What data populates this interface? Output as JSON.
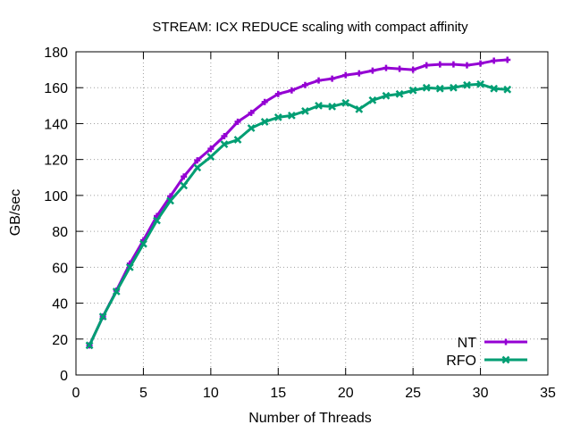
{
  "chart_data": {
    "type": "line",
    "title": "STREAM: ICX REDUCE scaling with compact affinity",
    "xlabel": "Number of Threads",
    "ylabel": "GB/sec",
    "xlim": [
      0,
      35
    ],
    "ylim": [
      0,
      180
    ],
    "xticks": [
      0,
      5,
      10,
      15,
      20,
      25,
      30,
      35
    ],
    "yticks": [
      0,
      20,
      40,
      60,
      80,
      100,
      120,
      140,
      160,
      180
    ],
    "grid": true,
    "legend_position": "bottom-right",
    "x": [
      1,
      2,
      3,
      4,
      5,
      6,
      7,
      8,
      9,
      10,
      11,
      12,
      13,
      14,
      15,
      16,
      17,
      18,
      19,
      20,
      21,
      22,
      23,
      24,
      25,
      26,
      27,
      28,
      29,
      30,
      31,
      32
    ],
    "series": [
      {
        "name": "NT",
        "color": "#9400d3",
        "marker": "plus",
        "values": [
          16.5,
          32.5,
          47,
          62,
          75,
          88.5,
          99.5,
          110.5,
          119.5,
          126,
          133,
          141,
          146,
          152,
          156.5,
          158.5,
          161.5,
          164,
          165,
          167,
          168,
          169.5,
          171,
          170.5,
          170,
          172.5,
          173,
          173,
          172.5,
          173.5,
          175,
          175.5
        ]
      },
      {
        "name": "RFO",
        "color": "#009e73",
        "marker": "cross",
        "values": [
          16.5,
          32.5,
          46.5,
          60,
          73,
          86,
          97,
          105.5,
          115.5,
          121.5,
          128.5,
          131,
          137.5,
          141,
          143.5,
          144.5,
          147,
          150,
          149.5,
          151.5,
          148,
          153,
          155.5,
          156.5,
          158.5,
          160,
          159.5,
          160,
          161.5,
          162,
          159.5,
          159
        ]
      }
    ]
  }
}
